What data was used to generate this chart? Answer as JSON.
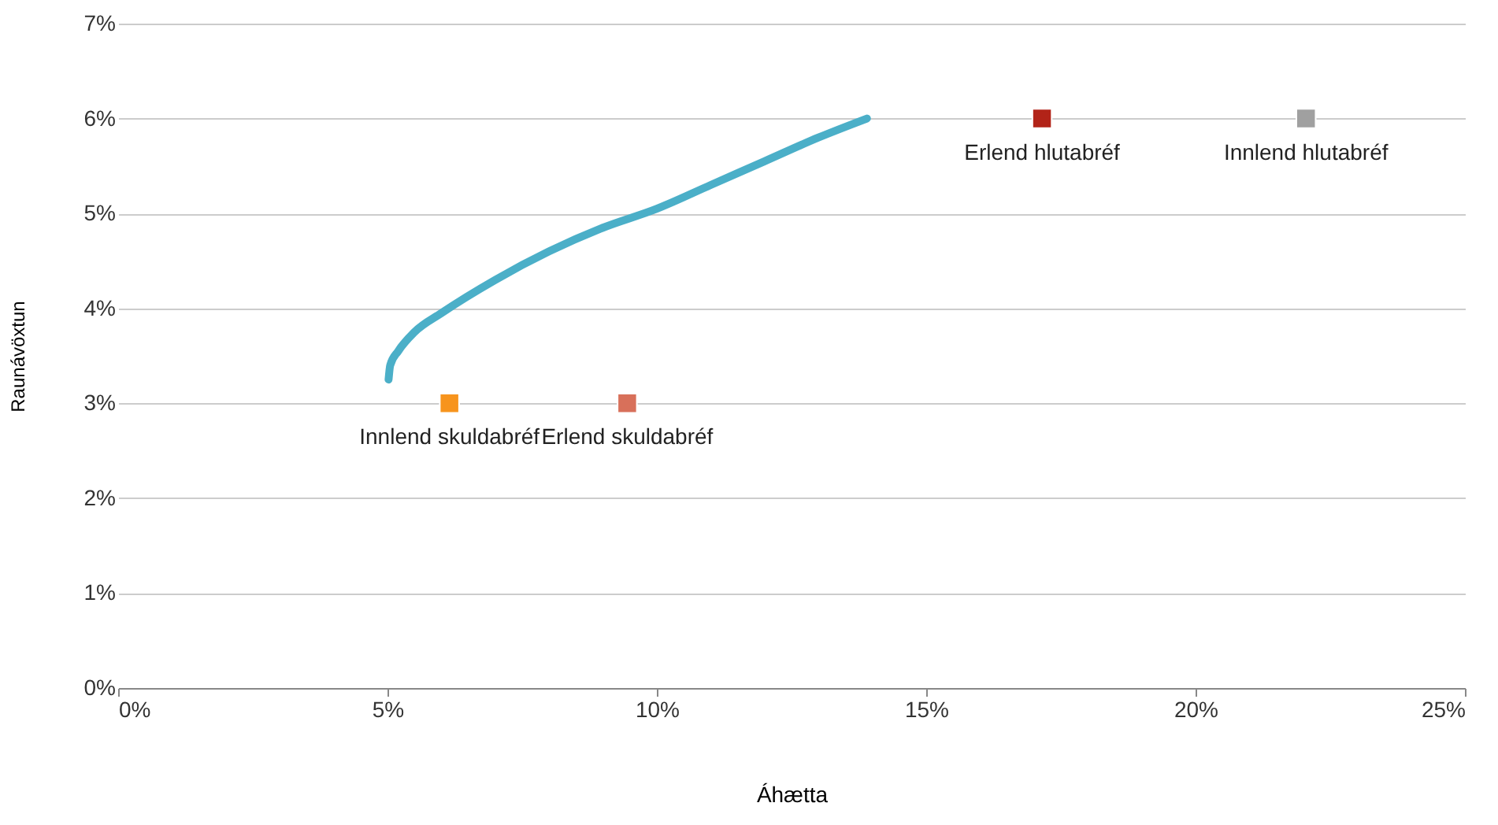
{
  "chart_data": {
    "type": "line",
    "xlabel": "Áhætta",
    "ylabel": "Raunávöxtun",
    "xlim": [
      0,
      25
    ],
    "ylim": [
      0,
      7
    ],
    "xticks": [
      {
        "value": 0,
        "label": "0%"
      },
      {
        "value": 5,
        "label": "5%"
      },
      {
        "value": 10,
        "label": "10%"
      },
      {
        "value": 15,
        "label": "15%"
      },
      {
        "value": 20,
        "label": "20%"
      },
      {
        "value": 25,
        "label": "25%"
      }
    ],
    "yticks": [
      {
        "value": 0,
        "label": "0%"
      },
      {
        "value": 1,
        "label": "1%"
      },
      {
        "value": 2,
        "label": "2%"
      },
      {
        "value": 3,
        "label": "3%"
      },
      {
        "value": 4,
        "label": "4%"
      },
      {
        "value": 5,
        "label": "5%"
      },
      {
        "value": 6,
        "label": "6%"
      },
      {
        "value": 7,
        "label": "7%"
      }
    ],
    "grid": "y",
    "series": [
      {
        "color": "#4bafc8",
        "marker": "none",
        "line_style": "solid",
        "x": [
          5.02,
          5.05,
          5.2,
          5.5,
          6.0,
          7.0,
          8.0,
          9.0,
          10.0,
          11.0,
          12.0,
          13.0,
          13.9
        ],
        "values": [
          3.25,
          3.4,
          3.55,
          3.75,
          3.95,
          4.3,
          4.6,
          4.85,
          5.05,
          5.3,
          5.55,
          5.8,
          6.0
        ]
      },
      {
        "type": "scatter",
        "name": "Innlend skuldabréf",
        "color": "#f7941d",
        "marker": "square",
        "x": [
          6.15
        ],
        "values": [
          3.0
        ]
      },
      {
        "type": "scatter",
        "name": "Erlend skuldabréf",
        "color": "#d8705a",
        "marker": "square",
        "x": [
          9.45
        ],
        "values": [
          3.0
        ]
      },
      {
        "type": "scatter",
        "name": "Erlend hlutabréf",
        "color": "#b22318",
        "marker": "square",
        "x": [
          17.15
        ],
        "values": [
          6.0
        ]
      },
      {
        "type": "scatter",
        "name": "Innlend hlutabréf",
        "color": "#a0a0a0",
        "marker": "square",
        "x": [
          22.05
        ],
        "values": [
          6.0
        ]
      }
    ]
  }
}
